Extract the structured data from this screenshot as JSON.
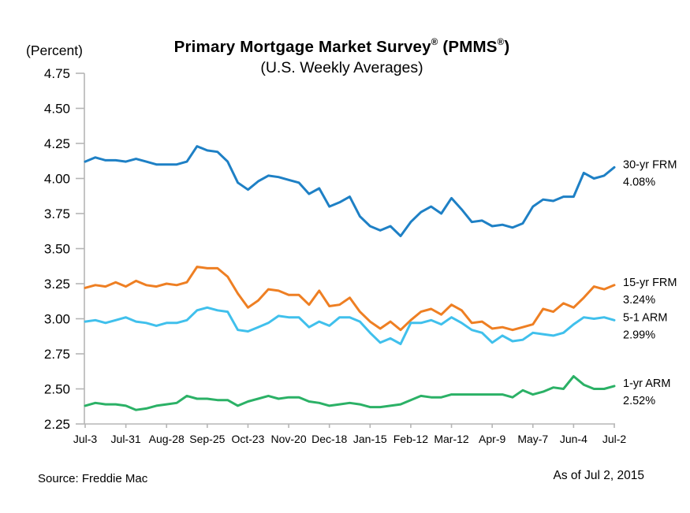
{
  "header": {
    "percent_label": "(Percent)",
    "title_main": "Primary Mortgage Market Survey",
    "title_sup1": "®",
    "title_mid": " (PMMS",
    "title_sup2": "®",
    "title_close": ")",
    "subtitle": "(U.S. Weekly Averages)"
  },
  "footer": {
    "source": "Source: Freddie Mac",
    "as_of": "As of Jul 2, 2015"
  },
  "chart_data": {
    "type": "line",
    "title": "Primary Mortgage Market Survey® (PMMS®)",
    "subtitle": "(U.S. Weekly Averages)",
    "ylabel": "(Percent)",
    "ylim": [
      2.25,
      4.75
    ],
    "ytick_step": 0.25,
    "y_tick_labels": [
      "4.75",
      "4.50",
      "4.25",
      "4.00",
      "3.75",
      "3.50",
      "3.25",
      "3.00",
      "2.75",
      "2.50",
      "2.25"
    ],
    "x_tick_labels": [
      "Jul-3",
      "Jul-31",
      "Aug-28",
      "Sep-25",
      "Oct-23",
      "Nov-20",
      "Dec-18",
      "Jan-15",
      "Feb-12",
      "Mar-12",
      "Apr-9",
      "May-7",
      "Jun-4",
      "Jul-2"
    ],
    "weeks_per_tick": 4,
    "n_points": 53,
    "grid": false,
    "legend_position": "right-of-line-ends",
    "axis_color": "#b5b5b5",
    "series": [
      {
        "name": "30-yr FRM",
        "end_value_label": "4.08%",
        "color": "#1e80c5",
        "values": [
          4.12,
          4.15,
          4.13,
          4.13,
          4.12,
          4.14,
          4.12,
          4.1,
          4.1,
          4.1,
          4.12,
          4.23,
          4.2,
          4.19,
          4.12,
          3.97,
          3.92,
          3.98,
          4.02,
          4.01,
          3.99,
          3.97,
          3.89,
          3.93,
          3.8,
          3.83,
          3.87,
          3.73,
          3.66,
          3.63,
          3.66,
          3.59,
          3.69,
          3.76,
          3.8,
          3.75,
          3.86,
          3.78,
          3.69,
          3.7,
          3.66,
          3.67,
          3.65,
          3.68,
          3.8,
          3.85,
          3.84,
          3.87,
          3.87,
          4.04,
          4.0,
          4.02,
          4.08
        ]
      },
      {
        "name": "15-yr FRM",
        "end_value_label": "3.24%",
        "color": "#ee7f23",
        "values": [
          3.22,
          3.24,
          3.23,
          3.26,
          3.23,
          3.27,
          3.24,
          3.23,
          3.25,
          3.24,
          3.26,
          3.37,
          3.36,
          3.36,
          3.3,
          3.18,
          3.08,
          3.13,
          3.21,
          3.2,
          3.17,
          3.17,
          3.1,
          3.2,
          3.09,
          3.1,
          3.15,
          3.05,
          2.98,
          2.93,
          2.98,
          2.92,
          2.99,
          3.05,
          3.07,
          3.03,
          3.1,
          3.06,
          2.97,
          2.98,
          2.93,
          2.94,
          2.92,
          2.94,
          2.96,
          3.07,
          3.05,
          3.11,
          3.08,
          3.15,
          3.23,
          3.21,
          3.24
        ]
      },
      {
        "name": "5-1 ARM",
        "end_value_label": "2.99%",
        "color": "#40c0ec",
        "values": [
          2.98,
          2.99,
          2.97,
          2.99,
          3.01,
          2.98,
          2.97,
          2.95,
          2.97,
          2.97,
          2.99,
          3.06,
          3.08,
          3.06,
          3.05,
          2.92,
          2.91,
          2.94,
          2.97,
          3.02,
          3.01,
          3.01,
          2.94,
          2.98,
          2.95,
          3.01,
          3.01,
          2.98,
          2.9,
          2.83,
          2.86,
          2.82,
          2.97,
          2.97,
          2.99,
          2.96,
          3.01,
          2.97,
          2.92,
          2.9,
          2.83,
          2.88,
          2.84,
          2.85,
          2.9,
          2.89,
          2.88,
          2.9,
          2.96,
          3.01,
          3.0,
          3.01,
          2.99
        ]
      },
      {
        "name": "1-yr ARM",
        "end_value_label": "2.52%",
        "color": "#2bb166",
        "values": [
          2.38,
          2.4,
          2.39,
          2.39,
          2.38,
          2.35,
          2.36,
          2.38,
          2.39,
          2.4,
          2.45,
          2.43,
          2.43,
          2.42,
          2.42,
          2.38,
          2.41,
          2.43,
          2.45,
          2.43,
          2.44,
          2.44,
          2.41,
          2.4,
          2.38,
          2.39,
          2.4,
          2.39,
          2.37,
          2.37,
          2.38,
          2.39,
          2.42,
          2.45,
          2.44,
          2.44,
          2.46,
          2.46,
          2.46,
          2.46,
          2.46,
          2.46,
          2.44,
          2.49,
          2.46,
          2.48,
          2.51,
          2.5,
          2.59,
          2.53,
          2.5,
          2.5,
          2.52
        ]
      }
    ]
  }
}
